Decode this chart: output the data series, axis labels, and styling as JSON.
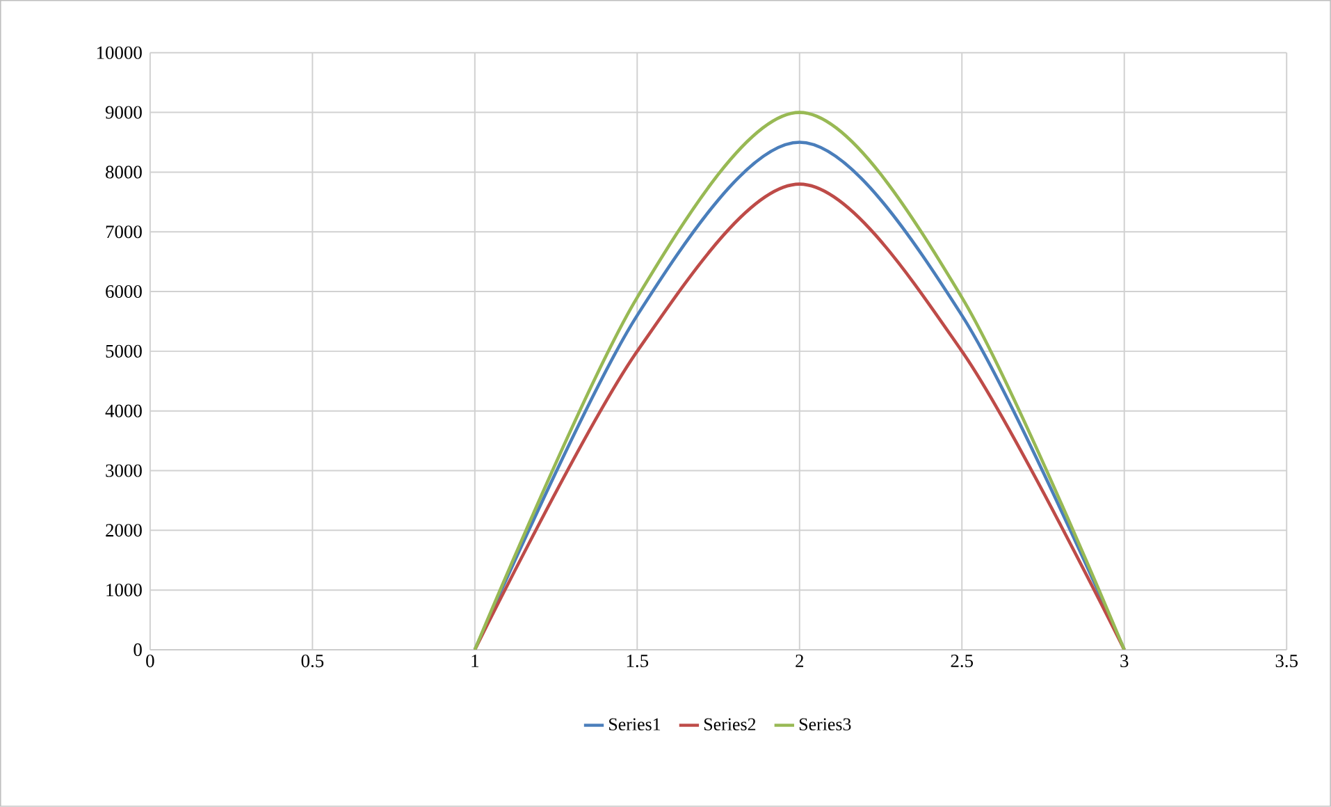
{
  "chart_data": {
    "type": "line",
    "x": [
      1,
      1.5,
      2,
      2.5,
      3
    ],
    "series": [
      {
        "name": "Series1",
        "color": "#4a7ebb",
        "values": [
          0,
          5600,
          8500,
          5600,
          0
        ]
      },
      {
        "name": "Series2",
        "color": "#be4b48",
        "values": [
          0,
          5000,
          7800,
          5000,
          0
        ]
      },
      {
        "name": "Series3",
        "color": "#98b954",
        "values": [
          0,
          5900,
          9000,
          5900,
          0
        ]
      }
    ],
    "xlim": [
      0,
      3.5
    ],
    "xticks": [
      0,
      0.5,
      1,
      1.5,
      2,
      2.5,
      3,
      3.5
    ],
    "ylim": [
      0,
      10000
    ],
    "yticks": [
      0,
      1000,
      2000,
      3000,
      4000,
      5000,
      6000,
      7000,
      8000,
      9000,
      10000
    ],
    "grid": true,
    "legend": "bottom",
    "marker": "none",
    "line_style": "solid"
  }
}
